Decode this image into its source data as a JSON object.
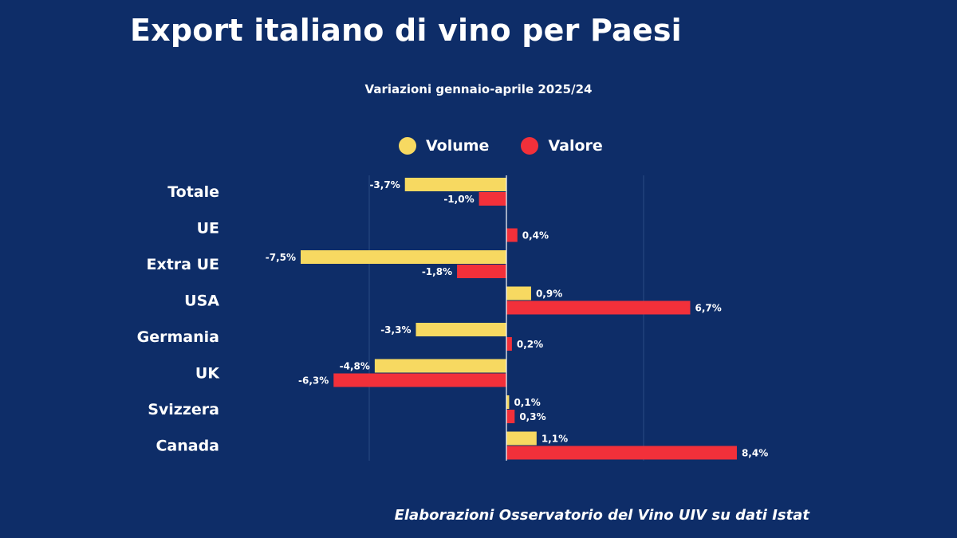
{
  "colors": {
    "background": "#0e2d68",
    "volume": "#f7d961",
    "valore": "#f2303a",
    "grid": "#2a4a85"
  },
  "chart_data": {
    "type": "bar",
    "orientation": "horizontal",
    "title": "Export italiano di vino per Paesi",
    "subtitle": "Variazioni gennaio-aprile 2025/24",
    "categories": [
      "Totale",
      "UE",
      "Extra UE",
      "USA",
      "Germania",
      "UK",
      "Svizzera",
      "Canada"
    ],
    "series": [
      {
        "name": "Volume",
        "values": [
          -3.7,
          null,
          -7.5,
          0.9,
          -3.3,
          -4.8,
          0.1,
          1.1
        ],
        "labels": [
          "-3,7%",
          null,
          "-7,5%",
          "0,9%",
          "-3,3%",
          "-4,8%",
          "0,1%",
          "1,1%"
        ]
      },
      {
        "name": "Valore",
        "values": [
          -1.0,
          0.4,
          -1.8,
          6.7,
          0.2,
          -6.3,
          0.3,
          8.4
        ],
        "labels": [
          "-1,0%",
          "0,4%",
          "-1,8%",
          "6,7%",
          "0,2%",
          "-6,3%",
          "0,3%",
          "8,4%"
        ]
      }
    ],
    "xlabel": "",
    "ylabel": "",
    "legend_position": "top",
    "source": "Elaborazioni Osservatorio del Vino UIV su dati Istat"
  }
}
